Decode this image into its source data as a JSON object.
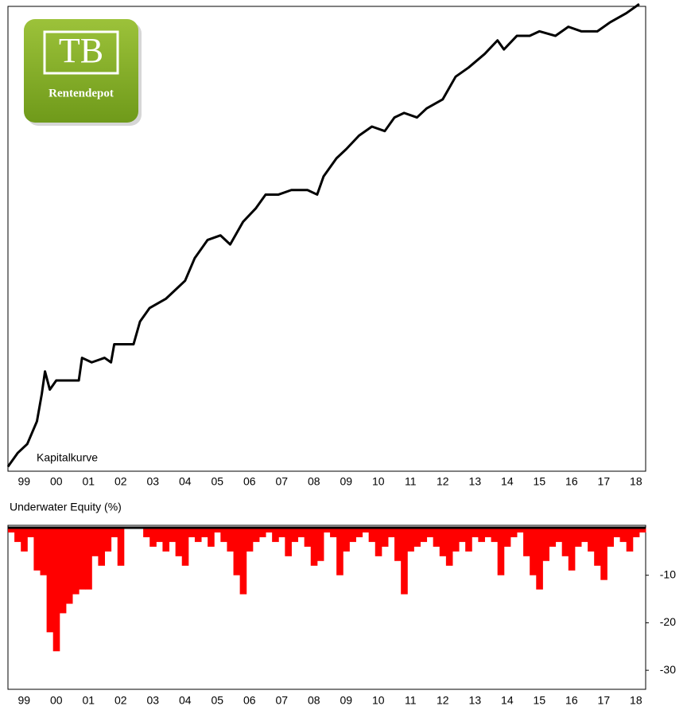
{
  "logo": {
    "text": "TB",
    "subtitle": "Rentendepot"
  },
  "chart_data": [
    {
      "type": "line",
      "annotation": "Kapitalkurve",
      "color": "#000000",
      "x": [
        1999.0,
        1999.3,
        1999.6,
        1999.9,
        2000.05,
        2000.15,
        2000.3,
        2000.5,
        2000.8,
        2001.2,
        2001.3,
        2001.6,
        2002.0,
        2002.2,
        2002.3,
        2002.9,
        2003.1,
        2003.4,
        2003.9,
        2004.2,
        2004.5,
        2004.8,
        2005.2,
        2005.6,
        2005.9,
        2006.3,
        2006.7,
        2007.0,
        2007.4,
        2007.8,
        2008.3,
        2008.6,
        2008.8,
        2009.2,
        2009.5,
        2009.9,
        2010.3,
        2010.7,
        2011.0,
        2011.3,
        2011.7,
        2012.0,
        2012.5,
        2012.9,
        2013.3,
        2013.8,
        2014.2,
        2014.4,
        2014.8,
        2015.2,
        2015.5,
        2016.0,
        2016.4,
        2016.8,
        2017.3,
        2017.7,
        2018.2,
        2018.6
      ],
      "values": [
        0,
        3,
        5,
        10,
        16,
        21,
        17,
        19,
        19,
        19,
        24,
        23,
        24,
        23,
        27,
        27,
        32,
        35,
        37,
        39,
        41,
        46,
        50,
        51,
        49,
        54,
        57,
        60,
        60,
        61,
        61,
        60,
        64,
        68,
        70,
        73,
        75,
        74,
        77,
        78,
        77,
        79,
        81,
        86,
        88,
        91,
        94,
        92,
        95,
        95,
        96,
        95,
        97,
        96,
        96,
        98,
        100,
        102
      ],
      "xlim": [
        1999.0,
        2018.8
      ],
      "ylim": [
        -1,
        101.5
      ],
      "xticks": [
        {
          "value": 1999.5,
          "label": "99"
        },
        {
          "value": 2000.5,
          "label": "00"
        },
        {
          "value": 2001.5,
          "label": "01"
        },
        {
          "value": 2002.5,
          "label": "02"
        },
        {
          "value": 2003.5,
          "label": "03"
        },
        {
          "value": 2004.5,
          "label": "04"
        },
        {
          "value": 2005.5,
          "label": "05"
        },
        {
          "value": 2006.5,
          "label": "06"
        },
        {
          "value": 2007.5,
          "label": "07"
        },
        {
          "value": 2008.5,
          "label": "08"
        },
        {
          "value": 2009.5,
          "label": "09"
        },
        {
          "value": 2010.5,
          "label": "10"
        },
        {
          "value": 2011.5,
          "label": "11"
        },
        {
          "value": 2012.5,
          "label": "12"
        },
        {
          "value": 2013.5,
          "label": "13"
        },
        {
          "value": 2014.5,
          "label": "14"
        },
        {
          "value": 2015.5,
          "label": "15"
        },
        {
          "value": 2016.5,
          "label": "16"
        },
        {
          "value": 2017.5,
          "label": "17"
        },
        {
          "value": 2018.5,
          "label": "18"
        }
      ]
    },
    {
      "type": "bar",
      "title": "Underwater Equity (%)",
      "color": "#ff0000",
      "x": [
        1999.0,
        1999.2,
        1999.4,
        1999.6,
        1999.8,
        2000.0,
        2000.2,
        2000.4,
        2000.6,
        2000.8,
        2001.0,
        2001.2,
        2001.4,
        2001.6,
        2001.8,
        2002.0,
        2002.2,
        2002.4,
        2002.6,
        2002.8,
        2003.0,
        2003.2,
        2003.4,
        2003.6,
        2003.8,
        2004.0,
        2004.2,
        2004.4,
        2004.6,
        2004.8,
        2005.0,
        2005.2,
        2005.4,
        2005.6,
        2005.8,
        2006.0,
        2006.2,
        2006.4,
        2006.6,
        2006.8,
        2007.0,
        2007.2,
        2007.4,
        2007.6,
        2007.8,
        2008.0,
        2008.2,
        2008.4,
        2008.6,
        2008.8,
        2009.0,
        2009.2,
        2009.4,
        2009.6,
        2009.8,
        2010.0,
        2010.2,
        2010.4,
        2010.6,
        2010.8,
        2011.0,
        2011.2,
        2011.4,
        2011.6,
        2011.8,
        2012.0,
        2012.2,
        2012.4,
        2012.6,
        2012.8,
        2013.0,
        2013.2,
        2013.4,
        2013.6,
        2013.8,
        2014.0,
        2014.2,
        2014.4,
        2014.6,
        2014.8,
        2015.0,
        2015.2,
        2015.4,
        2015.6,
        2015.8,
        2016.0,
        2016.2,
        2016.4,
        2016.6,
        2016.8,
        2017.0,
        2017.2,
        2017.4,
        2017.6,
        2017.8,
        2018.0,
        2018.2,
        2018.4,
        2018.6
      ],
      "values": [
        -1,
        -3,
        -5,
        -2,
        -9,
        -10,
        -22,
        -26,
        -18,
        -16,
        -14,
        -13,
        -13,
        -6,
        -8,
        -5,
        -2,
        -8,
        0,
        0,
        0,
        -2,
        -4,
        -3,
        -5,
        -3,
        -6,
        -8,
        -2,
        -3,
        -2,
        -4,
        -1,
        -3,
        -5,
        -10,
        -14,
        -5,
        -3,
        -2,
        -1,
        -3,
        -2,
        -6,
        -3,
        -2,
        -4,
        -8,
        -7,
        -1,
        -2,
        -10,
        -5,
        -3,
        -2,
        -1,
        -3,
        -6,
        -4,
        -2,
        -7,
        -14,
        -5,
        -4,
        -3,
        -2,
        -4,
        -6,
        -8,
        -5,
        -3,
        -5,
        -2,
        -3,
        -2,
        -3,
        -10,
        -4,
        -2,
        -1,
        -6,
        -10,
        -13,
        -7,
        -4,
        -3,
        -6,
        -9,
        -4,
        -3,
        -5,
        -8,
        -11,
        -4,
        -2,
        -3,
        -5,
        -2,
        -1
      ],
      "xlim": [
        1999.0,
        2018.8
      ],
      "ylim": [
        -34,
        0.5
      ],
      "yticks": [
        -10,
        -20,
        -30
      ],
      "xticks": [
        {
          "value": 1999.5,
          "label": "99"
        },
        {
          "value": 2000.5,
          "label": "00"
        },
        {
          "value": 2001.5,
          "label": "01"
        },
        {
          "value": 2002.5,
          "label": "02"
        },
        {
          "value": 2003.5,
          "label": "03"
        },
        {
          "value": 2004.5,
          "label": "04"
        },
        {
          "value": 2005.5,
          "label": "05"
        },
        {
          "value": 2006.5,
          "label": "06"
        },
        {
          "value": 2007.5,
          "label": "07"
        },
        {
          "value": 2008.5,
          "label": "08"
        },
        {
          "value": 2009.5,
          "label": "09"
        },
        {
          "value": 2010.5,
          "label": "10"
        },
        {
          "value": 2011.5,
          "label": "11"
        },
        {
          "value": 2012.5,
          "label": "12"
        },
        {
          "value": 2013.5,
          "label": "13"
        },
        {
          "value": 2014.5,
          "label": "14"
        },
        {
          "value": 2015.5,
          "label": "15"
        },
        {
          "value": 2016.5,
          "label": "16"
        },
        {
          "value": 2017.5,
          "label": "17"
        },
        {
          "value": 2018.5,
          "label": "18"
        }
      ]
    }
  ]
}
